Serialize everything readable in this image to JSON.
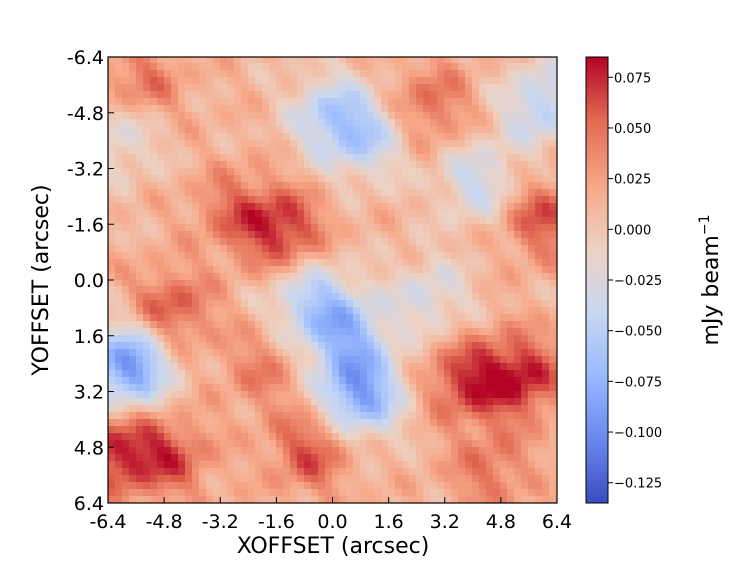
{
  "chart_data": {
    "type": "heatmap",
    "title": "",
    "xlabel": "XOFFSET (arcsec)",
    "ylabel": "YOFFSET (arcsec)",
    "xlim": [
      -6.4,
      6.4
    ],
    "ylim": [
      -6.4,
      6.4
    ],
    "y_axis_inverted": true,
    "x_ticks": [
      "-6.4",
      "-4.8",
      "-3.2",
      "-1.6",
      "0.0",
      "1.6",
      "3.2",
      "4.8",
      "6.4"
    ],
    "y_ticks": [
      "-6.4",
      "-4.8",
      "-3.2",
      "-1.6",
      "0.0",
      "1.6",
      "3.2",
      "4.8",
      "6.4"
    ],
    "colormap": "coolwarm",
    "colorbar": {
      "label": "mJy beam",
      "label_superscript": "−1",
      "range": [
        -0.135,
        0.085
      ],
      "ticks": [
        "0.075",
        "0.050",
        "0.025",
        "0.000",
        "−0.025",
        "−0.050",
        "−0.075",
        "−0.100",
        "−0.125"
      ],
      "colors": [
        "#3b4cc0",
        "#6788ee",
        "#9abbff",
        "#c9d7f0",
        "#edd1c2",
        "#f7a889",
        "#e26952",
        "#b40426"
      ]
    },
    "grid": false,
    "features": [
      {
        "x": -5.8,
        "y": 2.5,
        "value": -0.11
      },
      {
        "x": 0.8,
        "y": 3.3,
        "value": -0.1
      },
      {
        "x": 0.4,
        "y": 1.6,
        "value": -0.07
      },
      {
        "x": -0.6,
        "y": 0.6,
        "value": -0.06
      },
      {
        "x": 0.0,
        "y": -4.7,
        "value": -0.06
      },
      {
        "x": 1.0,
        "y": -4.0,
        "value": -0.05
      },
      {
        "x": 4.2,
        "y": -2.8,
        "value": -0.05
      },
      {
        "x": 6.0,
        "y": -5.0,
        "value": -0.06
      },
      {
        "x": -6.0,
        "y": -4.2,
        "value": -0.04
      },
      {
        "x": 2.8,
        "y": 0.5,
        "value": -0.04
      },
      {
        "x": -1.4,
        "y": -1.4,
        "value": 0.06
      },
      {
        "x": -4.6,
        "y": 0.9,
        "value": 0.05
      },
      {
        "x": 5.4,
        "y": 2.8,
        "value": 0.065
      },
      {
        "x": 3.8,
        "y": 2.9,
        "value": 0.055
      },
      {
        "x": -6.1,
        "y": 4.9,
        "value": 0.06
      },
      {
        "x": -4.6,
        "y": 5.1,
        "value": 0.045
      },
      {
        "x": -0.6,
        "y": 4.9,
        "value": 0.05
      },
      {
        "x": 2.8,
        "y": -5.0,
        "value": 0.04
      },
      {
        "x": 6.0,
        "y": -1.8,
        "value": 0.05
      },
      {
        "x": -2.8,
        "y": -2.0,
        "value": 0.035
      },
      {
        "x": 4.5,
        "y": 5.5,
        "value": 0.035
      },
      {
        "x": -5.5,
        "y": -5.5,
        "value": 0.04
      },
      {
        "x": -2.0,
        "y": 2.6,
        "value": 0.03
      }
    ]
  }
}
